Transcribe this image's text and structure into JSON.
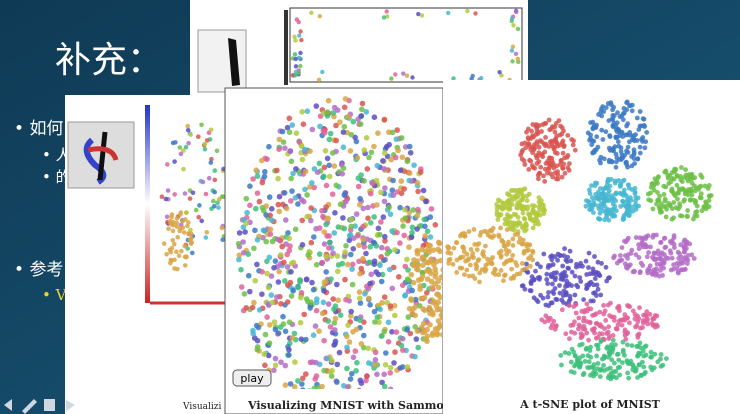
{
  "slide": {
    "title": "补充：",
    "bullets": [
      "如何",
      "参考"
    ],
    "sub_bullets": [
      "人",
      "的"
    ],
    "link": "V"
  },
  "figures": {
    "left_caption": "Visualizi",
    "middle_caption": "Visualizing MNIST with Sammon’s",
    "right_caption": "A t-SNE plot of MNIST",
    "play_button": "play"
  }
}
